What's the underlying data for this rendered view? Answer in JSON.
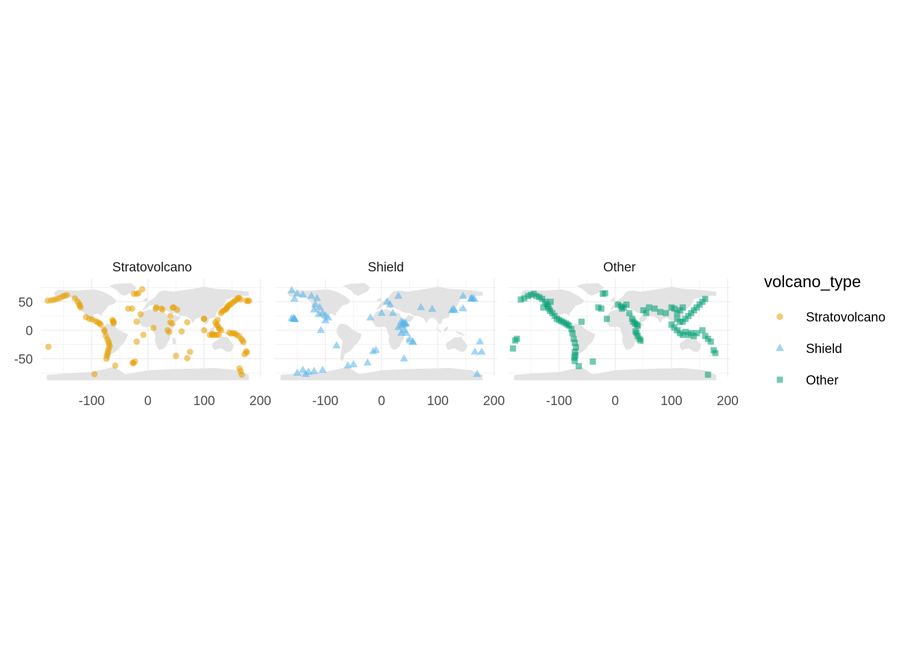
{
  "chart_data": {
    "type": "scatter",
    "facet_by": "volcano_type",
    "panels": [
      "Stratovolcano",
      "Shield",
      "Other"
    ],
    "x_ticks": [
      -100,
      0,
      100,
      200
    ],
    "y_ticks": [
      50,
      0,
      -50
    ],
    "xlim": [
      -190,
      205
    ],
    "ylim": [
      -82,
      90
    ],
    "grid": true,
    "background": "world map (light grey land)",
    "legend": {
      "title": "volcano_type",
      "position": "right",
      "entries": [
        {
          "label": "Stratovolcano",
          "color": "#E69F00",
          "shape": "circle"
        },
        {
          "label": "Shield",
          "color": "#56B4E9",
          "shape": "triangle"
        },
        {
          "label": "Other",
          "color": "#009E73",
          "shape": "square"
        }
      ]
    },
    "series": [
      {
        "name": "Stratovolcano",
        "color": "#E69F00",
        "shape": "circle",
        "points": [
          [
            -178,
            52
          ],
          [
            -172,
            52.5
          ],
          [
            -167,
            53.5
          ],
          [
            -162,
            55
          ],
          [
            -157,
            56.5
          ],
          [
            -152,
            59
          ],
          [
            -148,
            60.5
          ],
          [
            -144,
            61.5
          ],
          [
            -130,
            56
          ],
          [
            -125,
            50
          ],
          [
            -122,
            46
          ],
          [
            -121,
            43
          ],
          [
            -120,
            40
          ],
          [
            -110,
            23
          ],
          [
            -104,
            20
          ],
          [
            -99,
            19
          ],
          [
            -93,
            16
          ],
          [
            -89,
            14
          ],
          [
            -86,
            12
          ],
          [
            -84,
            10
          ],
          [
            -78,
            1
          ],
          [
            -77,
            -2
          ],
          [
            -75,
            -10
          ],
          [
            -72,
            -16
          ],
          [
            -70,
            -20
          ],
          [
            -69,
            -24
          ],
          [
            -68,
            -28
          ],
          [
            -70,
            -33
          ],
          [
            -71,
            -37
          ],
          [
            -72,
            -41
          ],
          [
            -73,
            -45
          ],
          [
            -74,
            -50
          ],
          [
            -62,
            16
          ],
          [
            -61,
            14
          ],
          [
            -63,
            18
          ],
          [
            -61,
            12
          ],
          [
            -177,
            -29
          ],
          [
            -95,
            -77
          ],
          [
            -58,
            -62
          ],
          [
            -27,
            -57
          ],
          [
            -26,
            -58
          ],
          [
            -23,
            -55
          ],
          [
            -35,
            38
          ],
          [
            -28,
            38
          ],
          [
            -25,
            64
          ],
          [
            -20,
            64
          ],
          [
            -17,
            65
          ],
          [
            -10,
            72
          ],
          [
            -20,
            15
          ],
          [
            -13,
            28
          ],
          [
            -8,
            -8
          ],
          [
            10,
            4
          ],
          [
            14,
            38
          ],
          [
            15,
            40
          ],
          [
            24,
            38
          ],
          [
            26,
            36
          ],
          [
            38,
            -3
          ],
          [
            35,
            0
          ],
          [
            40,
            14
          ],
          [
            43,
            12
          ],
          [
            44,
            40
          ],
          [
            46,
            40
          ],
          [
            52,
            36
          ],
          [
            50,
            -45
          ],
          [
            70,
            -49
          ],
          [
            75,
            -38
          ],
          [
            40,
            25
          ],
          [
            100,
            20
          ],
          [
            100,
            0
          ],
          [
            110,
            -8
          ],
          [
            114,
            -8
          ],
          [
            118,
            -8
          ],
          [
            122,
            -8
          ],
          [
            126,
            -8
          ],
          [
            115,
            -6
          ],
          [
            120,
            14
          ],
          [
            122,
            10
          ],
          [
            124,
            8
          ],
          [
            126,
            4
          ],
          [
            128,
            2
          ],
          [
            130,
            0
          ],
          [
            124,
            18
          ],
          [
            130,
            30
          ],
          [
            132,
            33
          ],
          [
            135,
            35
          ],
          [
            138,
            36
          ],
          [
            140,
            38
          ],
          [
            141,
            40
          ],
          [
            142,
            43
          ],
          [
            145,
            44
          ],
          [
            148,
            46
          ],
          [
            151,
            49
          ],
          [
            154,
            51
          ],
          [
            157,
            53
          ],
          [
            160,
            56
          ],
          [
            162,
            57
          ],
          [
            165,
            54
          ],
          [
            175,
            52
          ],
          [
            180,
            52
          ],
          [
            178,
            51
          ],
          [
            145,
            -4
          ],
          [
            148,
            -6
          ],
          [
            152,
            -5
          ],
          [
            155,
            -6
          ],
          [
            158,
            -8
          ],
          [
            162,
            -10
          ],
          [
            166,
            -15
          ],
          [
            168,
            -18
          ],
          [
            170,
            -21
          ],
          [
            175,
            -37
          ],
          [
            176,
            -39
          ],
          [
            172,
            -42
          ],
          [
            163,
            -67
          ],
          [
            165,
            -72
          ],
          [
            167,
            -78
          ],
          [
            60,
            -2
          ],
          [
            70,
            14
          ],
          [
            100,
            20
          ],
          [
            -20,
            -20
          ]
        ]
      },
      {
        "name": "Shield",
        "color": "#56B4E9",
        "shape": "triangle",
        "points": [
          [
            -157,
            20
          ],
          [
            -155,
            19.5
          ],
          [
            -156,
            21
          ],
          [
            -154,
            19
          ],
          [
            -160,
            21
          ],
          [
            -150,
            64
          ],
          [
            -140,
            62
          ],
          [
            -155,
            55
          ],
          [
            -125,
            60
          ],
          [
            -115,
            56
          ],
          [
            -110,
            40
          ],
          [
            -120,
            36
          ],
          [
            -118,
            45
          ],
          [
            -100,
            26
          ],
          [
            -95,
            22
          ],
          [
            -112,
            28
          ],
          [
            -100,
            17
          ],
          [
            -105,
            30
          ],
          [
            -160,
            70
          ],
          [
            -108,
            0
          ],
          [
            -105,
            -70
          ],
          [
            -130,
            -73
          ],
          [
            -120,
            -72
          ],
          [
            -150,
            -75
          ],
          [
            -140,
            -70
          ],
          [
            -135,
            -77
          ],
          [
            -80,
            -27
          ],
          [
            -60,
            -62
          ],
          [
            -50,
            -60
          ],
          [
            -15,
            -37
          ],
          [
            -10,
            -35
          ],
          [
            -25,
            -57
          ],
          [
            -20,
            22
          ],
          [
            0,
            30
          ],
          [
            30,
            60
          ],
          [
            10,
            50
          ],
          [
            15,
            45
          ],
          [
            20,
            30
          ],
          [
            35,
            15
          ],
          [
            40,
            12
          ],
          [
            42,
            13
          ],
          [
            38,
            14
          ],
          [
            43,
            11
          ],
          [
            36,
            8
          ],
          [
            38,
            10
          ],
          [
            40,
            0
          ],
          [
            44,
            -5
          ],
          [
            50,
            -16
          ],
          [
            56,
            -21
          ],
          [
            55,
            -20
          ],
          [
            40,
            -50
          ],
          [
            125,
            35
          ],
          [
            130,
            35
          ],
          [
            128,
            37
          ],
          [
            145,
            38
          ],
          [
            145,
            60
          ],
          [
            160,
            55
          ],
          [
            159,
            56
          ],
          [
            162,
            56
          ],
          [
            165,
            55
          ],
          [
            166,
            -38
          ],
          [
            175,
            -20
          ],
          [
            178,
            -38
          ],
          [
            170,
            -77
          ],
          [
            30,
            5
          ],
          [
            35,
            -5
          ],
          [
            90,
            37
          ],
          [
            70,
            40
          ]
        ]
      },
      {
        "name": "Other",
        "color": "#009E73",
        "shape": "square",
        "points": [
          [
            -168,
            54
          ],
          [
            -162,
            56
          ],
          [
            -155,
            60
          ],
          [
            -150,
            62
          ],
          [
            -145,
            64
          ],
          [
            -140,
            60
          ],
          [
            -135,
            58
          ],
          [
            -130,
            55
          ],
          [
            -125,
            50
          ],
          [
            -122,
            46
          ],
          [
            -120,
            42
          ],
          [
            -118,
            38
          ],
          [
            -116,
            34
          ],
          [
            -112,
            30
          ],
          [
            -108,
            25
          ],
          [
            -104,
            20
          ],
          [
            -100,
            18
          ],
          [
            -96,
            16
          ],
          [
            -92,
            14
          ],
          [
            -88,
            12
          ],
          [
            -85,
            10
          ],
          [
            -82,
            8
          ],
          [
            -78,
            2
          ],
          [
            -76,
            -5
          ],
          [
            -74,
            -15
          ],
          [
            -72,
            -22
          ],
          [
            -70,
            -30
          ],
          [
            -72,
            -38
          ],
          [
            -71,
            -44
          ],
          [
            -73,
            -48
          ],
          [
            -72,
            -54
          ],
          [
            -65,
            -63
          ],
          [
            -175,
            -15
          ],
          [
            -178,
            -18
          ],
          [
            -182,
            -32
          ],
          [
            -115,
            50
          ],
          [
            -128,
            40
          ],
          [
            -60,
            15
          ],
          [
            -30,
            40
          ],
          [
            -25,
            38
          ],
          [
            -22,
            64
          ],
          [
            -18,
            65
          ],
          [
            -15,
            20
          ],
          [
            5,
            45
          ],
          [
            10,
            42
          ],
          [
            12,
            38
          ],
          [
            15,
            40
          ],
          [
            20,
            45
          ],
          [
            25,
            30
          ],
          [
            30,
            20
          ],
          [
            32,
            15
          ],
          [
            35,
            12
          ],
          [
            38,
            10
          ],
          [
            40,
            8
          ],
          [
            36,
            -2
          ],
          [
            38,
            -5
          ],
          [
            40,
            -10
          ],
          [
            43,
            -15
          ],
          [
            45,
            -18
          ],
          [
            50,
            35
          ],
          [
            55,
            30
          ],
          [
            60,
            40
          ],
          [
            70,
            38
          ],
          [
            80,
            32
          ],
          [
            90,
            30
          ],
          [
            100,
            40
          ],
          [
            105,
            38
          ],
          [
            110,
            30
          ],
          [
            115,
            35
          ],
          [
            120,
            40
          ],
          [
            100,
            10
          ],
          [
            105,
            5
          ],
          [
            110,
            0
          ],
          [
            115,
            -5
          ],
          [
            120,
            -8
          ],
          [
            125,
            -3
          ],
          [
            130,
            -8
          ],
          [
            135,
            -5
          ],
          [
            140,
            -10
          ],
          [
            145,
            -5
          ],
          [
            110,
            20
          ],
          [
            115,
            15
          ],
          [
            120,
            15
          ],
          [
            125,
            20
          ],
          [
            130,
            25
          ],
          [
            135,
            30
          ],
          [
            140,
            35
          ],
          [
            145,
            40
          ],
          [
            150,
            45
          ],
          [
            155,
            50
          ],
          [
            160,
            55
          ],
          [
            155,
            0
          ],
          [
            160,
            -10
          ],
          [
            165,
            -15
          ],
          [
            170,
            -20
          ],
          [
            175,
            -35
          ],
          [
            178,
            -40
          ],
          [
            -40,
            -55
          ],
          [
            165,
            -78
          ]
        ]
      }
    ]
  }
}
